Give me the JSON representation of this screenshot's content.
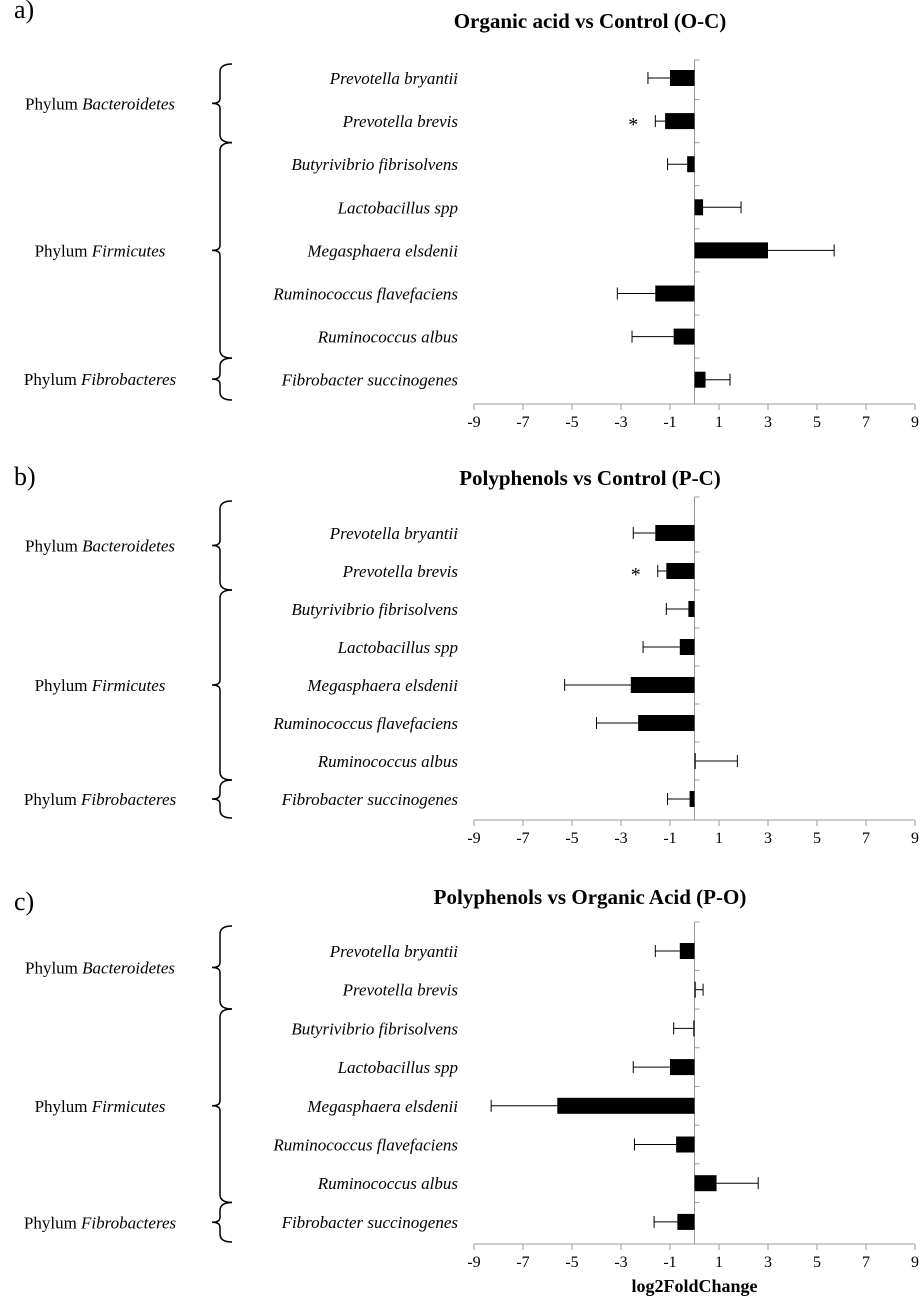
{
  "chart_data": [
    {
      "type": "bar",
      "orientation": "horizontal",
      "panel_label": "a)",
      "title": "Organic acid vs Control (O-C)",
      "xlabel": "",
      "xlim": [
        -9,
        9
      ],
      "xticks": [
        -9,
        -7,
        -5,
        -3,
        -1,
        1,
        3,
        5,
        7,
        9
      ],
      "categories": [
        "Prevotella bryantii",
        "Prevotella brevis",
        "Butyrivibrio fibrisolvens",
        "Lactobacillus spp",
        "Megasphaera elsdenii",
        "Ruminococcus flavefaciens",
        "Ruminococcus albus",
        "Fibrobacter succinogenes"
      ],
      "values": [
        -1.0,
        -1.2,
        -0.3,
        0.35,
        3.0,
        -1.6,
        -0.85,
        0.45
      ],
      "error": [
        0.9,
        0.4,
        0.8,
        1.55,
        2.7,
        1.55,
        1.7,
        1.0
      ],
      "significance": [
        "",
        "*",
        "",
        "",
        "",
        "",
        "",
        ""
      ],
      "groups": [
        {
          "prefix": "Phylum ",
          "name": "Bacteroidetes",
          "start": 0,
          "end": 1
        },
        {
          "prefix": "Phylum ",
          "name": "Firmicutes",
          "start": 2,
          "end": 6
        },
        {
          "prefix": "Phylum ",
          "name": "Fibrobacteres",
          "start": 7,
          "end": 7
        }
      ]
    },
    {
      "type": "bar",
      "orientation": "horizontal",
      "panel_label": "b)",
      "title": "Polyphenols vs Control (P-C)",
      "xlabel": "",
      "xlim": [
        -9,
        9
      ],
      "xticks": [
        -9,
        -7,
        -5,
        -3,
        -1,
        1,
        3,
        5,
        7,
        9
      ],
      "categories": [
        "Prevotella bryantii",
        "Prevotella brevis",
        "Butyrivibrio fibrisolvens",
        "Lactobacillus spp",
        "Megasphaera elsdenii",
        "Ruminococcus flavefaciens",
        "Ruminococcus albus",
        "Fibrobacter succinogenes"
      ],
      "values": [
        -1.6,
        -1.15,
        -0.25,
        -0.6,
        -2.6,
        -2.3,
        0.05,
        -0.2
      ],
      "error": [
        0.9,
        0.35,
        0.9,
        1.5,
        2.7,
        1.7,
        1.7,
        0.9
      ],
      "significance": [
        "",
        "*",
        "",
        "",
        "",
        "",
        "",
        ""
      ],
      "groups": [
        {
          "prefix": "Phylum ",
          "name": "Bacteroidetes",
          "start": 0,
          "end": 1
        },
        {
          "prefix": "Phylum ",
          "name": "Firmicutes",
          "start": 2,
          "end": 6
        },
        {
          "prefix": "Phylum ",
          "name": "Fibrobacteres",
          "start": 7,
          "end": 7
        }
      ]
    },
    {
      "type": "bar",
      "orientation": "horizontal",
      "panel_label": "c)",
      "title": "Polyphenols vs Organic Acid (P-O)",
      "xlabel": "log2FoldChange",
      "xlim": [
        -9,
        9
      ],
      "xticks": [
        -9,
        -7,
        -5,
        -3,
        -1,
        1,
        3,
        5,
        7,
        9
      ],
      "categories": [
        "Prevotella bryantii",
        "Prevotella brevis",
        "Butyrivibrio fibrisolvens",
        "Lactobacillus spp",
        "Megasphaera elsdenii",
        "Ruminococcus flavefaciens",
        "Ruminococcus albus",
        "Fibrobacter succinogenes"
      ],
      "values": [
        -0.6,
        0.05,
        -0.05,
        -1.0,
        -5.6,
        -0.75,
        0.9,
        -0.7
      ],
      "error": [
        1.0,
        0.3,
        0.8,
        1.5,
        2.7,
        1.7,
        1.7,
        0.95
      ],
      "significance": [
        "",
        "",
        "",
        "",
        "",
        "",
        "",
        ""
      ],
      "groups": [
        {
          "prefix": "Phylum ",
          "name": "Bacteroidetes",
          "start": 0,
          "end": 1
        },
        {
          "prefix": "Phylum ",
          "name": "Firmicutes",
          "start": 2,
          "end": 6
        },
        {
          "prefix": "Phylum ",
          "name": "Fibrobacteres",
          "start": 7,
          "end": 7
        }
      ]
    }
  ]
}
